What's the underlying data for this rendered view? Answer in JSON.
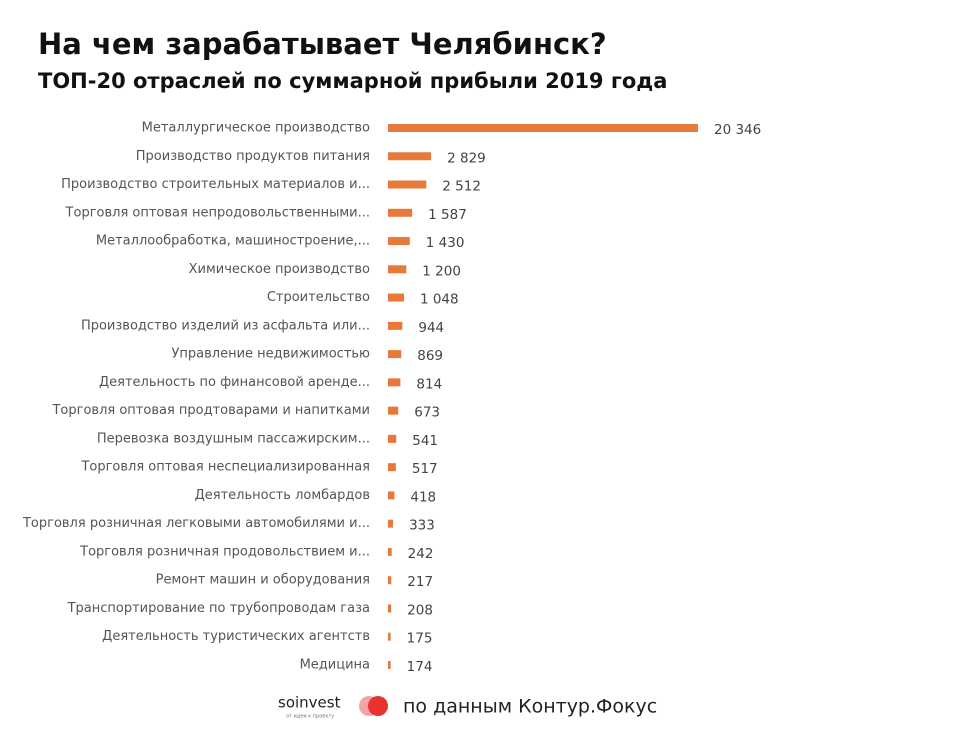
{
  "chart_data": {
    "type": "hbar",
    "title": "На чем зарабатывает Челябинск?",
    "subtitle": "ТОП-20 отраслей по суммарной прибыли 2019 года",
    "color": "#e8793a",
    "categories": [
      "Металлургическое производство",
      "Производство продуктов питания",
      "Производство строительных материалов и...",
      "Торговля оптовая непродовольственными...",
      "Металлообработка, машиностроение,...",
      "Химическое производство",
      "Строительство",
      "Производство изделий из асфальта или...",
      "Управление недвижимостью",
      "Деятельность по финансовой аренде...",
      "Торговля оптовая продтоварами и напитками",
      "Перевозка воздушным пассажирским...",
      "Торговля оптовая неспециализированная",
      "Деятельность ломбардов",
      "Торговля розничная легковыми автомобилями и...",
      "Торговля розничная продовольствием и...",
      "Ремонт машин и оборудования",
      "Транспортирование по трубопроводам газа",
      "Деятельность туристических агентств",
      "Медицина"
    ],
    "values": [
      20346,
      2829,
      2512,
      1587,
      1430,
      1200,
      1048,
      944,
      869,
      814,
      673,
      541,
      517,
      418,
      333,
      242,
      217,
      208,
      175,
      174
    ],
    "value_labels": [
      "20 346",
      "2 829",
      "2 512",
      "1 587",
      "1 430",
      "1 200",
      "1 048",
      "944",
      "869",
      "814",
      "673",
      "541",
      "517",
      "418",
      "333",
      "242",
      "217",
      "208",
      "175",
      "174"
    ]
  },
  "footer": {
    "logo": "soinvest",
    "logo_tagline": "от идеи к проекту",
    "source": "по данным Контур.Фокус"
  }
}
